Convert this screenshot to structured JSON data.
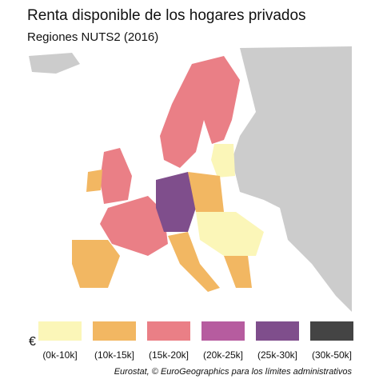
{
  "title": "Renta disponible de los hogares privados",
  "subtitle": "Regiones NUTS2 (2016)",
  "legend": {
    "symbol": "€",
    "items": [
      {
        "label": "(0k-10k]",
        "color": "#fbf6b8"
      },
      {
        "label": "(10k-15k]",
        "color": "#f2b762"
      },
      {
        "label": "(15k-20k]",
        "color": "#ea7f86"
      },
      {
        "label": "(20k-25k]",
        "color": "#b65c9f"
      },
      {
        "label": "(25k-30k]",
        "color": "#7f4e8c"
      },
      {
        "label": "(30k-50k]",
        "color": "#444444"
      }
    ]
  },
  "source": "Eurostat, © EuroGeographics para los límites administrativos"
}
